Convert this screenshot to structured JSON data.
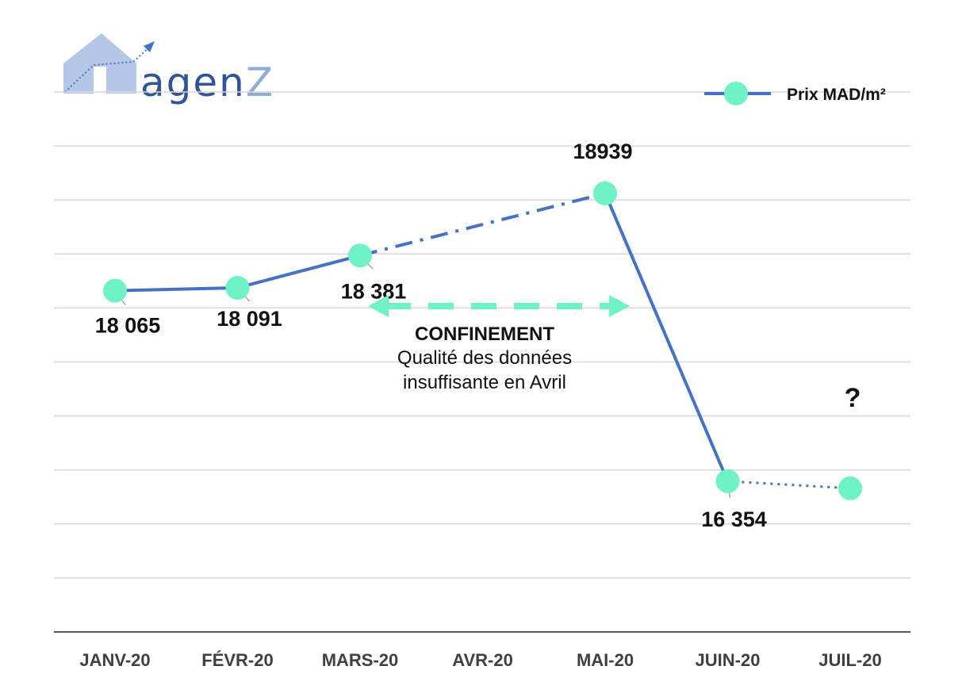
{
  "logo": {
    "text": "agen",
    "text_accent": "Z"
  },
  "colors": {
    "line": "#4472C4",
    "marker": "#6EF2C6",
    "grid": "#D9D9D9",
    "axis": "#595959",
    "logo_house": "#B4C7E7",
    "logo_text": "#2F5597",
    "logo_accent": "#8FAADC",
    "arrow": "#6EF2C6"
  },
  "annotation": {
    "title": "CONFINEMENT",
    "body": "Qualité des données insuffisante en Avril"
  },
  "question_mark": "?",
  "chart_data": {
    "type": "line",
    "categories": [
      "JANV-20",
      "FÉVR-20",
      "MARS-20",
      "AVR-20",
      "MAI-20",
      "JUIN-20",
      "JUIL-20"
    ],
    "series": [
      {
        "name": "Prix MAD/m²",
        "values": [
          18065,
          18091,
          18381,
          null,
          18939,
          16354,
          16290
        ],
        "labels": [
          "18 065",
          "18 091",
          "18 381",
          "",
          "18939",
          "16 354",
          ""
        ],
        "segments": [
          {
            "from": "JANV-20",
            "to": "MARS-20",
            "style": "solid"
          },
          {
            "from": "MARS-20",
            "to": "MAI-20",
            "style": "dash-dot"
          },
          {
            "from": "MAI-20",
            "to": "JUIN-20",
            "style": "solid"
          },
          {
            "from": "JUIN-20",
            "to": "JUIL-20",
            "style": "dotted"
          }
        ]
      }
    ],
    "ylim": [
      15000,
      19850
    ],
    "grid": true,
    "legend": "top-right",
    "xlabel": "",
    "ylabel": ""
  }
}
